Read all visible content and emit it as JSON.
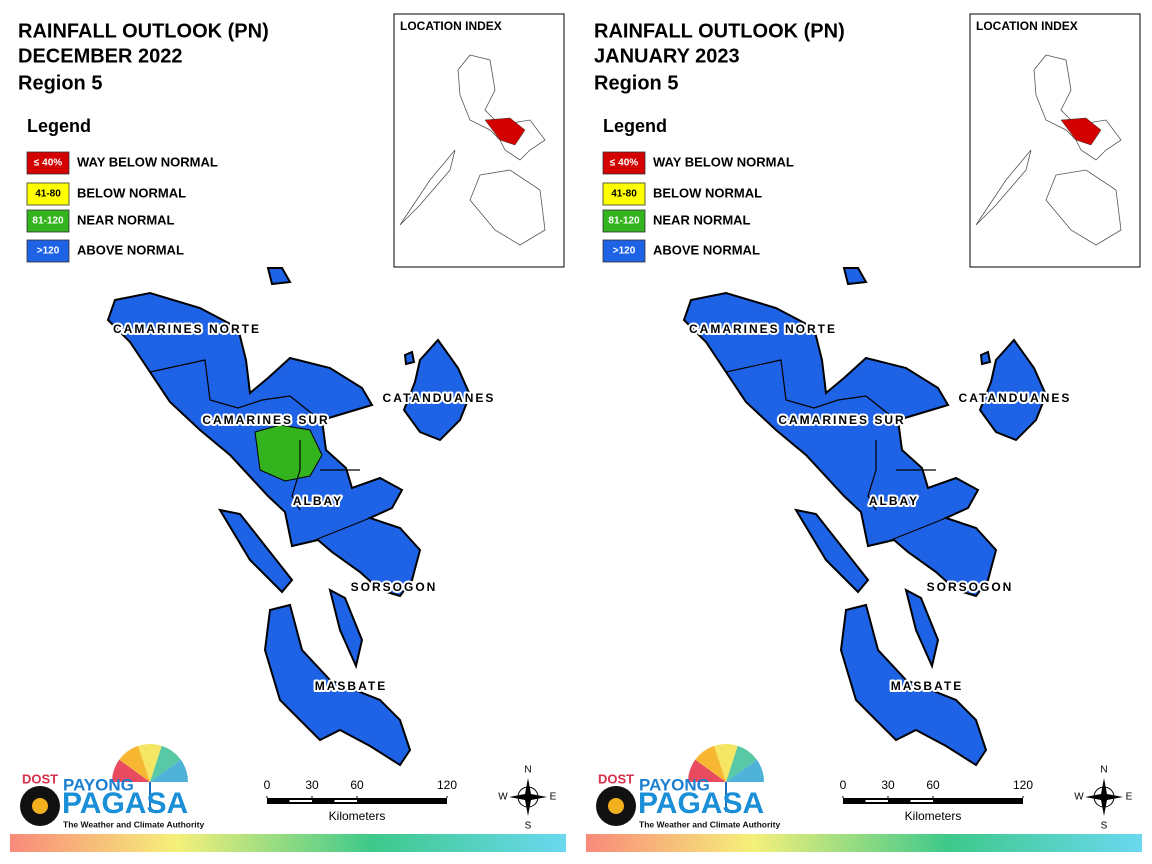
{
  "panels": [
    {
      "title": [
        "RAINFALL OUTLOOK (PN)",
        "DECEMBER 2022",
        "Region 5"
      ],
      "legend": {
        "title": "Legend",
        "items": [
          {
            "swatch": "≤ 40%",
            "label": "WAY BELOW NORMAL",
            "color": "#d40000"
          },
          {
            "swatch": "41-80",
            "label": "BELOW NORMAL",
            "color": "#ffff00"
          },
          {
            "swatch": "81-120",
            "label": "NEAR NORMAL",
            "color": "#33b41e"
          },
          {
            "swatch": ">120",
            "label": "ABOVE NORMAL",
            "color": "#1e63e6"
          }
        ]
      },
      "location_index": "LOCATION INDEX",
      "provinces": [
        "CAMARINES NORTE",
        "CAMARINES SUR",
        "CATANDUANES",
        "ALBAY",
        "SORSOGON",
        "MASBATE"
      ],
      "scale": {
        "ticks": [
          0,
          30,
          60,
          120
        ],
        "unit": "Kilometers"
      },
      "compass": {
        "n": "N",
        "e": "E",
        "s": "S",
        "w": "W"
      },
      "logo": {
        "dost": "DOST",
        "payong": "PAYONG",
        "pagasa": "PAGASA",
        "tagline": "The Weather and Climate Authority"
      }
    },
    {
      "title": [
        "RAINFALL OUTLOOK (PN)",
        "JANUARY 2023",
        "Region 5"
      ],
      "legend": {
        "title": "Legend",
        "items": [
          {
            "swatch": "≤ 40%",
            "label": "WAY BELOW NORMAL",
            "color": "#d40000"
          },
          {
            "swatch": "41-80",
            "label": "BELOW NORMAL",
            "color": "#ffff00"
          },
          {
            "swatch": "81-120",
            "label": "NEAR NORMAL",
            "color": "#33b41e"
          },
          {
            "swatch": ">120",
            "label": "ABOVE NORMAL",
            "color": "#1e63e6"
          }
        ]
      },
      "location_index": "LOCATION INDEX",
      "provinces": [
        "CAMARINES NORTE",
        "CAMARINES SUR",
        "CATANDUANES",
        "ALBAY",
        "SORSOGON",
        "MASBATE"
      ],
      "scale": {
        "ticks": [
          0,
          30,
          60,
          120
        ],
        "unit": "Kilometers"
      },
      "compass": {
        "n": "N",
        "e": "E",
        "s": "S",
        "w": "W"
      },
      "logo": {
        "dost": "DOST",
        "payong": "PAYONG",
        "pagasa": "PAGASA",
        "tagline": "The Weather and Climate Authority"
      }
    }
  ]
}
